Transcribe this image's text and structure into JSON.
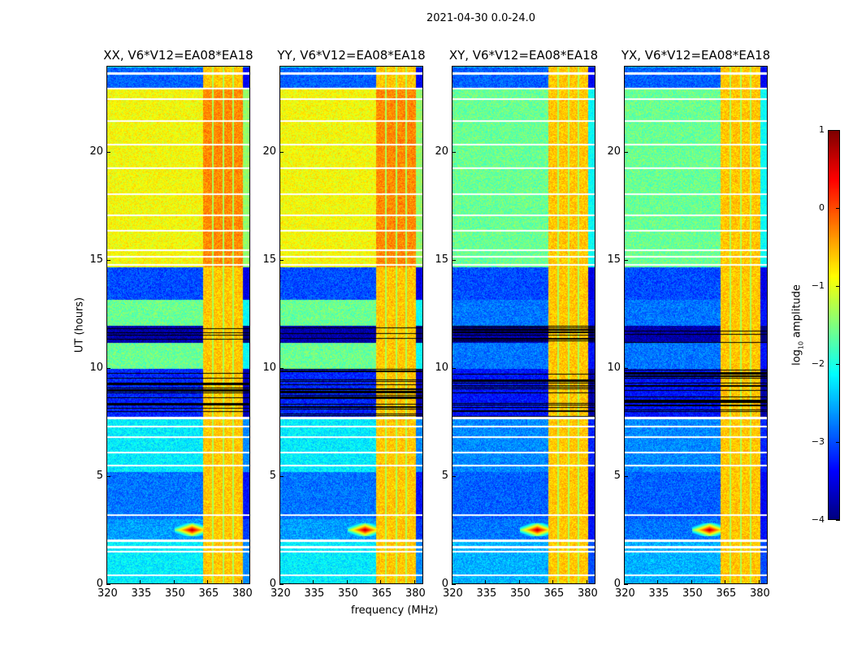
{
  "chart_data": {
    "type": "heatmap",
    "suptitle": "2021-04-30 0.0-24.0",
    "xlabel": "frequency (MHz)",
    "ylabel": "UT (hours)",
    "xlim": [
      320,
      384
    ],
    "ylim": [
      0,
      24
    ],
    "xticks": [
      "320",
      "335",
      "350",
      "365",
      "380"
    ],
    "xtick_values": [
      320,
      335,
      350,
      365,
      380
    ],
    "yticks": [
      "0",
      "5",
      "10",
      "15",
      "20"
    ],
    "ytick_values": [
      0,
      5,
      10,
      15,
      20
    ],
    "colormap": "jet",
    "colorbar": {
      "label": "log10 amplitude",
      "label_main": "log",
      "label_sub": "10",
      "label_rest": " amplitude",
      "range": [
        -4,
        1
      ],
      "ticks": [
        "1",
        "0",
        "−1",
        "−2",
        "−3",
        "−4"
      ],
      "tick_values": [
        1,
        0,
        -1,
        -2,
        -3,
        -4
      ]
    },
    "panels": [
      {
        "title": "XX, V6*V12=EA08*EA18",
        "kind": "parallel"
      },
      {
        "title": "YY, V6*V12=EA08*EA18",
        "kind": "parallel"
      },
      {
        "title": "XY, V6*V12=EA08*EA18",
        "kind": "cross"
      },
      {
        "title": "YX, V6*V12=EA08*EA18",
        "kind": "cross"
      }
    ],
    "time_segments_hours_level": [
      {
        "t": [
          0,
          2
        ],
        "parallel": -2.2,
        "cross": -2.5
      },
      {
        "t": [
          2,
          3
        ],
        "parallel": -2.6,
        "cross": -2.8
      },
      {
        "t": [
          3,
          5.2
        ],
        "parallel": -2.8,
        "cross": -2.9
      },
      {
        "t": [
          5.2,
          7.7
        ],
        "parallel": -2.2,
        "cross": -2.7
      },
      {
        "t": [
          7.7,
          10
        ],
        "parallel": -3.2,
        "cross": -3.3
      },
      {
        "t": [
          10,
          11.2
        ],
        "parallel": -1.6,
        "cross": -2.8
      },
      {
        "t": [
          11.2,
          12
        ],
        "parallel": -3.8,
        "cross": -3.8
      },
      {
        "t": [
          12,
          13.2
        ],
        "parallel": -1.6,
        "cross": -2.8
      },
      {
        "t": [
          13.2,
          14.7
        ],
        "parallel": -3.0,
        "cross": -3.0
      },
      {
        "t": [
          14.7,
          23
        ],
        "parallel": -0.9,
        "cross": -1.6
      },
      {
        "t": [
          23,
          24
        ],
        "parallel": -2.9,
        "cross": -2.9
      }
    ],
    "rfi_band_mhz": [
      363,
      381
    ],
    "rfi_band_level": -0.4,
    "rfi_burst": {
      "t": 2.5,
      "freq": 358,
      "level": 0.8
    },
    "flagged_hours": [
      0.4,
      1.5,
      1.7,
      2.0,
      3.2,
      5.5,
      6.1,
      6.8,
      7.3,
      7.7,
      14.8,
      15.2,
      15.5,
      16.4,
      17.1,
      18.1,
      19.3,
      20.4,
      21.5,
      22.5,
      23.0,
      23.7
    ]
  }
}
